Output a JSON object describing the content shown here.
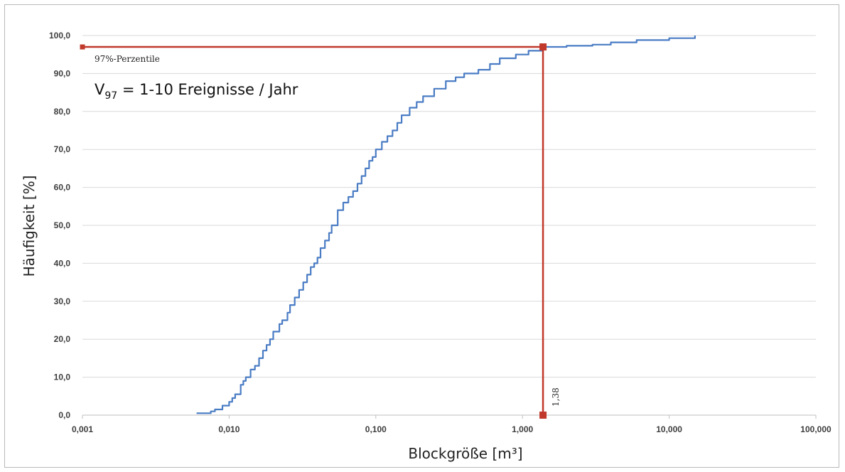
{
  "chart_data": {
    "type": "line",
    "xlabel": "Blockgröße [m³]",
    "ylabel": "Häufigkeit [%]",
    "x_scale": "log",
    "xlim": [
      0.001,
      100
    ],
    "ylim": [
      0,
      100
    ],
    "x_tick_labels": [
      "0,001",
      "0,010",
      "0,100",
      "1,000",
      "10,000",
      "100,000"
    ],
    "x_tick_values": [
      0.001,
      0.01,
      0.1,
      1,
      10,
      100
    ],
    "y_tick_labels": [
      "0,0",
      "10,0",
      "20,0",
      "30,0",
      "40,0",
      "50,0",
      "60,0",
      "70,0",
      "80,0",
      "90,0",
      "100,0"
    ],
    "y_tick_values": [
      0,
      10,
      20,
      30,
      40,
      50,
      60,
      70,
      80,
      90,
      100
    ],
    "grid": "horizontal",
    "colors": {
      "series": "#4a7cc4",
      "marker": "#c0392b",
      "grid": "#d9d9d9"
    },
    "series": [
      {
        "x": [
          0.006,
          0.0075,
          0.008,
          0.009,
          0.01,
          0.0105,
          0.011,
          0.012,
          0.0125,
          0.013,
          0.014,
          0.015,
          0.016,
          0.017,
          0.018,
          0.019,
          0.02,
          0.022,
          0.023,
          0.025,
          0.026,
          0.028,
          0.03,
          0.032,
          0.034,
          0.036,
          0.038,
          0.04,
          0.042,
          0.045,
          0.048,
          0.05,
          0.055,
          0.06,
          0.065,
          0.07,
          0.075,
          0.08,
          0.085,
          0.09,
          0.095,
          0.1,
          0.11,
          0.12,
          0.13,
          0.14,
          0.15,
          0.17,
          0.19,
          0.21,
          0.25,
          0.3,
          0.35,
          0.4,
          0.5,
          0.6,
          0.7,
          0.9,
          1.1,
          1.38,
          2,
          3,
          4,
          6,
          10,
          15
        ],
        "y": [
          0.5,
          1,
          1.5,
          2.5,
          3.5,
          4.5,
          5.5,
          8,
          9,
          10,
          12,
          13,
          15,
          17,
          18.5,
          20,
          22,
          24,
          25,
          27,
          29,
          31,
          33,
          35,
          37,
          39,
          40,
          41.5,
          44,
          46,
          48,
          50,
          54,
          56,
          57.5,
          59,
          61,
          63,
          65,
          67,
          68,
          70,
          72,
          73.5,
          75,
          77,
          79,
          81,
          82.5,
          84,
          86,
          88,
          89,
          90,
          91,
          92.5,
          94,
          95,
          96,
          97,
          97.3,
          97.6,
          98.2,
          98.8,
          99.3,
          100
        ]
      }
    ],
    "marker": {
      "x": 1.38,
      "y": 97,
      "x_label": "1,38",
      "y_label": "97%-Perzentile"
    },
    "annotation": {
      "main": "V",
      "sub": "97",
      "rest": " = 1-10 Ereignisse / Jahr"
    }
  }
}
